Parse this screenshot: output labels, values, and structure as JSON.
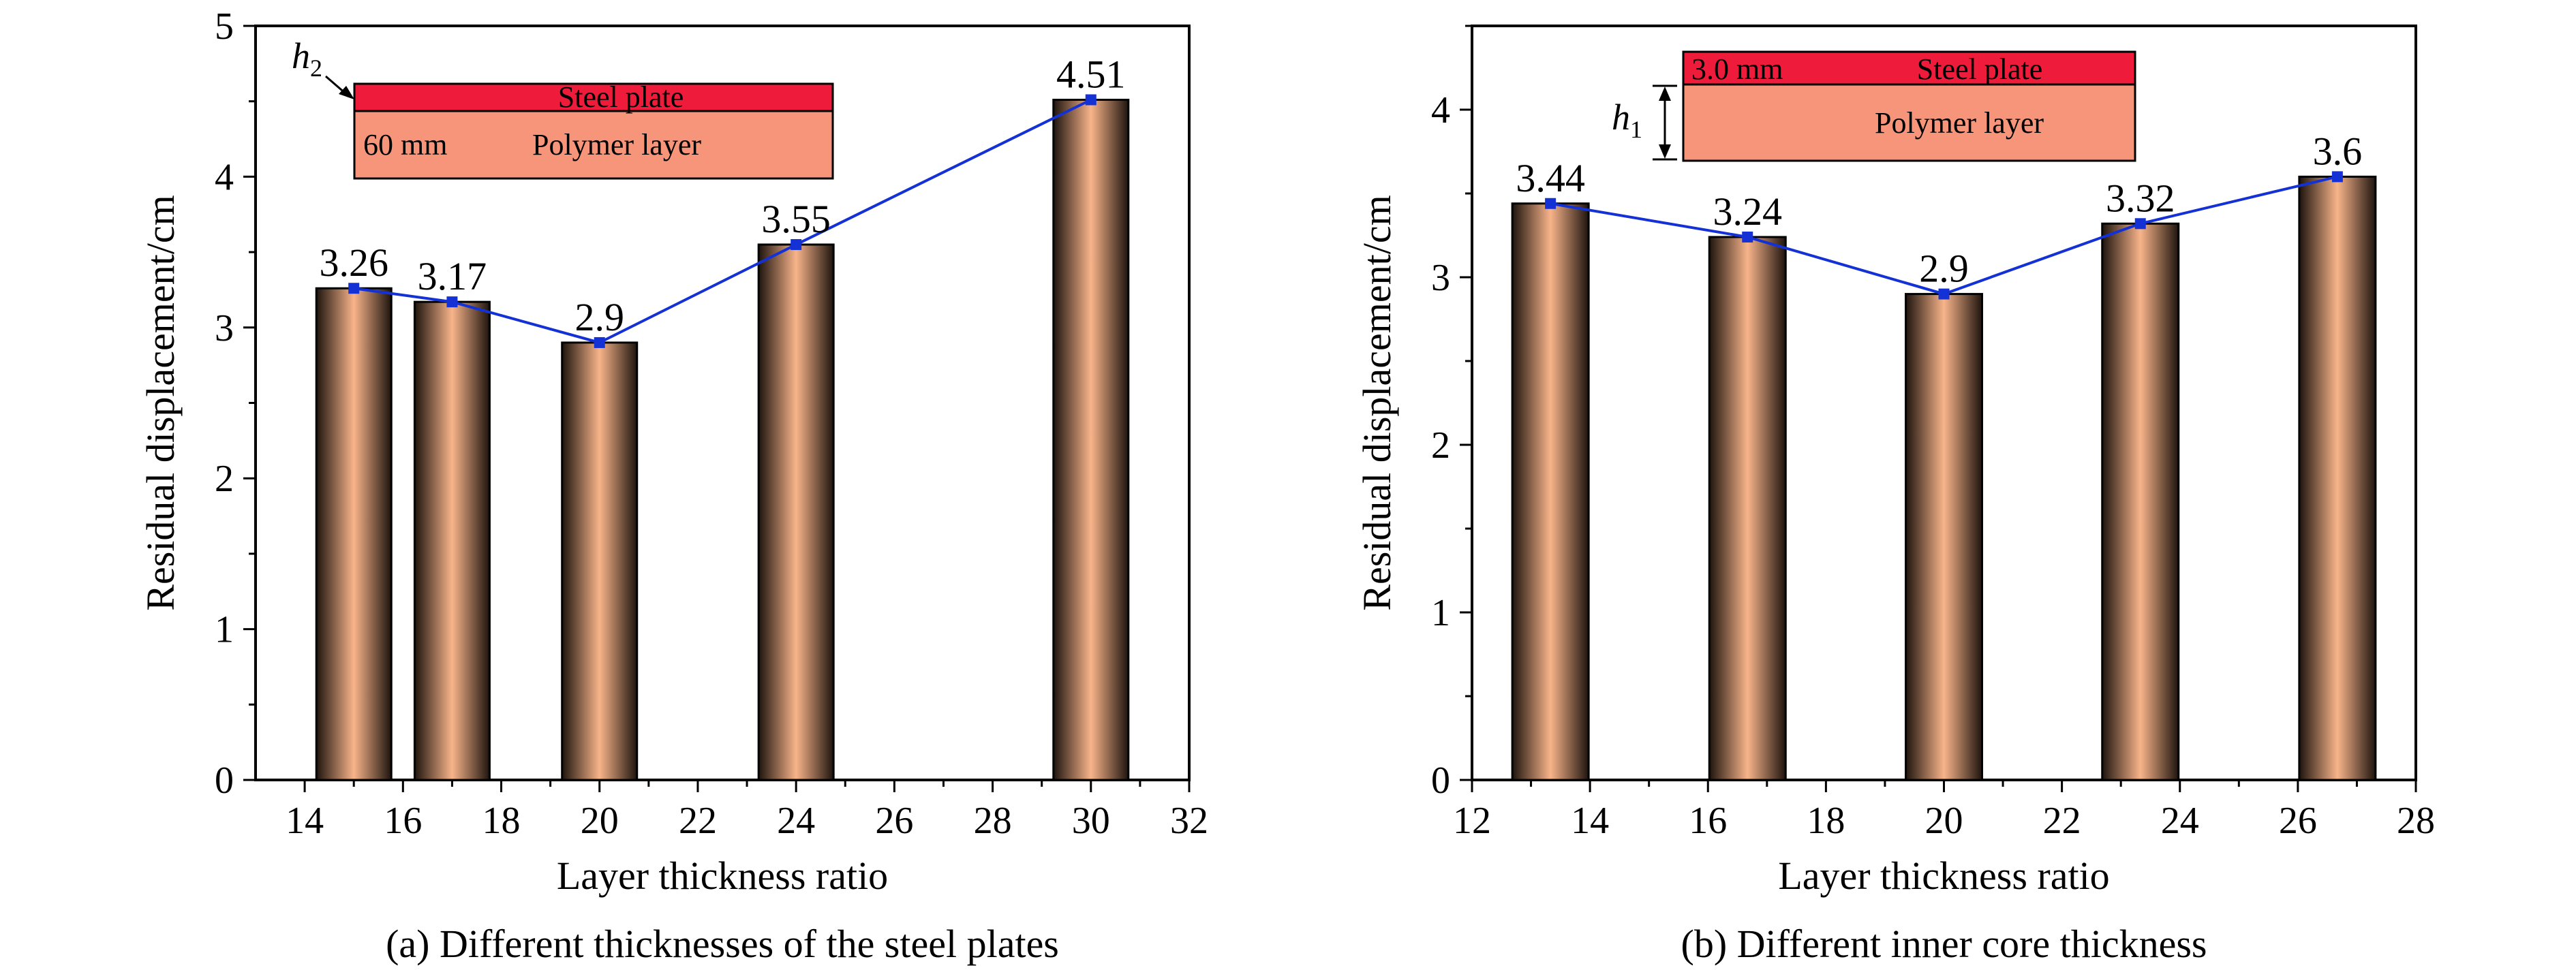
{
  "figure": {
    "panels": [
      {
        "caption": "(a) Different thicknesses of the steel plates",
        "inset": {
          "steel_label": "Steel plate",
          "polymer_label": "Polymer layer",
          "dim_label": "60 mm",
          "h_symbol": "h",
          "h_subscript": "2",
          "steel_color": "#ee1c3a",
          "polymer_color": "#f7957b"
        }
      },
      {
        "caption": "(b) Different inner core thickness",
        "inset": {
          "steel_label": "Steel plate",
          "polymer_label": "Polymer layer",
          "dim_label": "3.0 mm",
          "h_symbol": "h",
          "h_subscript": "1",
          "steel_color": "#ee1c3a",
          "polymer_color": "#f7957b"
        }
      }
    ]
  },
  "colors": {
    "bar_center": "#f8b48a",
    "bar_edge": "#1e140e",
    "line": "#1431d6",
    "marker": "#1431d6",
    "axis": "#000000"
  },
  "chart_data": [
    {
      "type": "bar",
      "title": "",
      "xlabel": "Layer thickness ratio",
      "ylabel": "Residual displacement/cm",
      "x": [
        15,
        17,
        20,
        24,
        30
      ],
      "values": [
        3.26,
        3.17,
        2.9,
        3.55,
        4.51
      ],
      "data_labels": [
        "3.26",
        "3.17",
        "2.9",
        "3.55",
        "4.51"
      ],
      "overlay_line": true,
      "xlim": [
        13,
        32
      ],
      "ylim": [
        0,
        5
      ],
      "xticks": [
        14,
        16,
        18,
        20,
        22,
        24,
        26,
        28,
        30,
        32
      ],
      "yticks": [
        0,
        1,
        2,
        3,
        4,
        5
      ],
      "grid": false
    },
    {
      "type": "bar",
      "title": "",
      "xlabel": "Layer thickness ratio",
      "ylabel": "Residual displacement/cm",
      "x": [
        13.33,
        16.67,
        20,
        23.33,
        26.67
      ],
      "values": [
        3.44,
        3.24,
        2.9,
        3.32,
        3.6
      ],
      "data_labels": [
        "3.44",
        "3.24",
        "2.9",
        "3.32",
        "3.6"
      ],
      "overlay_line": true,
      "xlim": [
        12,
        28
      ],
      "ylim": [
        0,
        4.5
      ],
      "xticks": [
        12,
        14,
        16,
        18,
        20,
        22,
        24,
        26,
        28
      ],
      "yticks": [
        0,
        1,
        2,
        3,
        4
      ],
      "grid": false
    }
  ]
}
